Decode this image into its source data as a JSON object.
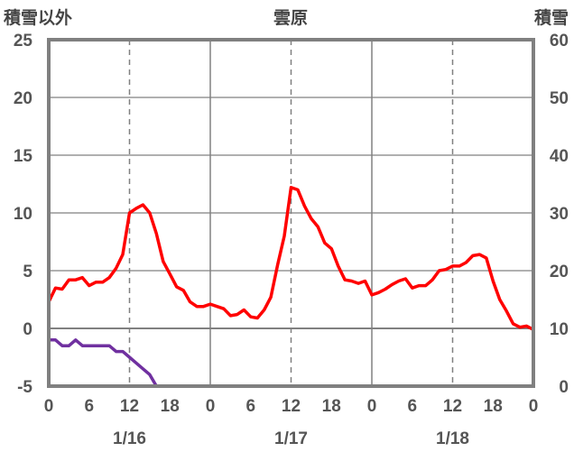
{
  "chart_data": {
    "type": "line",
    "title": "雲原",
    "left_axis_label": "積雪以外",
    "right_axis_label": "積雪",
    "y_left": {
      "min": -5,
      "max": 25,
      "ticks": [
        "-5",
        "0",
        "5",
        "10",
        "15",
        "20",
        "25"
      ]
    },
    "y_right": {
      "min": 0,
      "max": 60,
      "ticks": [
        "0",
        "10",
        "20",
        "30",
        "40",
        "50",
        "60"
      ]
    },
    "x": {
      "min_hour": 0,
      "max_hour": 72,
      "tick_labels": [
        "0",
        "6",
        "12",
        "18",
        "0",
        "6",
        "12",
        "18",
        "0",
        "6",
        "12",
        "18",
        "0"
      ],
      "day_labels": [
        "1/16",
        "1/17",
        "1/18"
      ]
    },
    "grid": {
      "solid_hours": [
        24,
        48
      ],
      "dashed_hours": [
        12,
        36,
        60
      ],
      "horizontal_zero": true
    },
    "colors": {
      "temperature": "#ff0000",
      "snow": "#7030a0",
      "frame": "#808080",
      "grid": "#808080"
    },
    "series": [
      {
        "axis": "left",
        "color": "#ff0000",
        "values": [
          2.3,
          3.5,
          3.4,
          4.2,
          4.2,
          4.4,
          3.7,
          4.0,
          4.0,
          4.4,
          5.2,
          6.4,
          10.0,
          10.4,
          10.7,
          10.0,
          8.2,
          5.8,
          4.7,
          3.6,
          3.3,
          2.3,
          1.9,
          1.9,
          2.1,
          1.9,
          1.7,
          1.1,
          1.2,
          1.6,
          1.0,
          0.9,
          1.6,
          2.7,
          5.5,
          8.0,
          12.2,
          12.0,
          10.6,
          9.5,
          8.8,
          7.4,
          6.9,
          5.4,
          4.2,
          4.1,
          3.9,
          4.1,
          2.9,
          3.1,
          3.4,
          3.8,
          4.1,
          4.3,
          3.5,
          3.7,
          3.7,
          4.2,
          5.0,
          5.1,
          5.4,
          5.4,
          5.7,
          6.3,
          6.4,
          6.1,
          4.1,
          2.5,
          1.5,
          0.4,
          0.1,
          0.2,
          -0.1
        ]
      },
      {
        "axis": "right",
        "color": "#7030a0",
        "values": [
          8,
          8,
          7,
          7,
          8,
          7,
          7,
          7,
          7,
          7,
          6,
          6,
          5,
          4,
          3,
          2,
          0,
          0,
          0,
          0,
          0,
          0,
          0,
          0,
          0,
          0,
          0,
          0,
          0,
          0,
          0,
          0,
          0,
          0,
          0,
          0,
          0,
          0,
          0,
          0,
          0,
          0,
          0,
          0,
          0,
          0,
          0,
          0,
          0,
          0,
          0,
          0,
          0,
          0,
          0,
          0,
          0,
          0,
          0,
          0,
          0,
          0,
          0,
          0,
          0,
          0,
          0,
          0,
          0,
          0,
          0,
          0,
          0
        ]
      }
    ]
  }
}
